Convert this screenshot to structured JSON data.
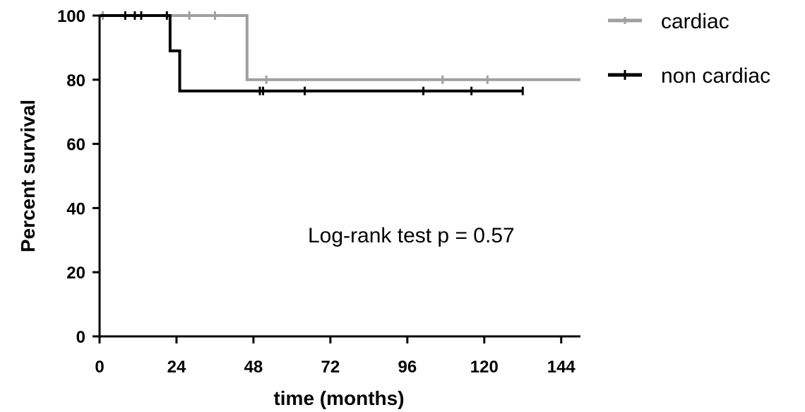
{
  "chart_data": {
    "type": "line",
    "step": true,
    "title": "",
    "xlabel": "time (months)",
    "ylabel": "Percent survival",
    "xlim": [
      0,
      150
    ],
    "ylim": [
      0,
      100
    ],
    "xticks": [
      0,
      24,
      48,
      72,
      96,
      120,
      144
    ],
    "yticks": [
      0,
      20,
      40,
      60,
      80,
      100
    ],
    "grid": false,
    "legend_position": "top-right",
    "annotation": "Log-rank test p = 0.57",
    "series": [
      {
        "name": "cardiac",
        "color": "#a0a0a0",
        "x": [
          0,
          46,
          46,
          150
        ],
        "y": [
          100,
          100,
          80,
          80
        ],
        "censored": [
          {
            "x": 1,
            "y": 100
          },
          {
            "x": 28,
            "y": 100
          },
          {
            "x": 36,
            "y": 100
          },
          {
            "x": 52,
            "y": 80
          },
          {
            "x": 107,
            "y": 80
          },
          {
            "x": 121,
            "y": 80
          }
        ]
      },
      {
        "name": "non cardiac",
        "color": "#000000",
        "x": [
          0,
          22,
          22,
          25,
          25,
          132
        ],
        "y": [
          100,
          100,
          89,
          89,
          76.5,
          76.5
        ],
        "censored": [
          {
            "x": 8,
            "y": 100
          },
          {
            "x": 11,
            "y": 100
          },
          {
            "x": 13,
            "y": 100
          },
          {
            "x": 21,
            "y": 100
          },
          {
            "x": 50,
            "y": 76.5
          },
          {
            "x": 51,
            "y": 76.5
          },
          {
            "x": 64,
            "y": 76.5
          },
          {
            "x": 101,
            "y": 76.5
          },
          {
            "x": 116,
            "y": 76.5
          },
          {
            "x": 132,
            "y": 76.5
          }
        ]
      }
    ]
  }
}
